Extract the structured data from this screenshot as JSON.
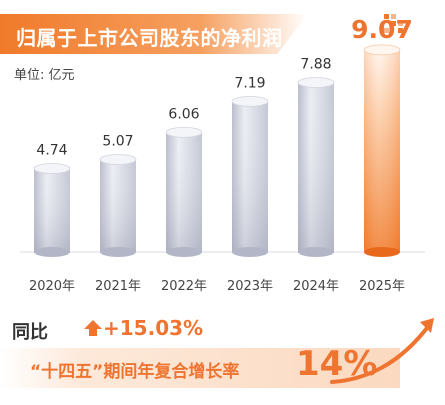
{
  "header": {
    "title": "归属于上市公司股东的净利润"
  },
  "unit_label": "单位: 亿元",
  "chart_data": {
    "type": "bar",
    "categories": [
      "2020年",
      "2021年",
      "2022年",
      "2023年",
      "2024年",
      "2025年"
    ],
    "values": [
      4.74,
      5.07,
      6.06,
      7.19,
      7.88,
      9.07
    ],
    "value_labels": [
      "4.74",
      "5.07",
      "6.06",
      "7.19",
      "7.88",
      "9.07"
    ],
    "title": "归属于上市公司股东的净利润",
    "ylabel": "单位: 亿元",
    "highlight_index": 5
  },
  "summary": {
    "yoy_label": "同比",
    "yoy_value": "+15.03%",
    "cagr_label": "“十四五”期间年复合增长率",
    "cagr_value": "14%"
  },
  "colors": {
    "accent": "#ef7430",
    "bar_gray": "#c8cad6",
    "bar_highlight": "#f07a2a"
  }
}
